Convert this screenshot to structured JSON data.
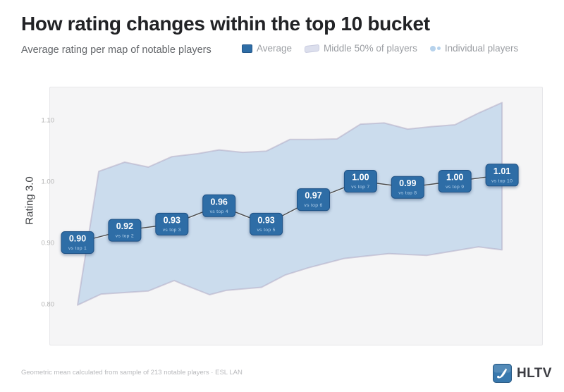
{
  "header": {
    "title": "How rating changes within the top 10 bucket",
    "subtitle": "Average rating per map of notable players"
  },
  "legend": {
    "items": [
      {
        "key": "average",
        "label": "Average",
        "color": "#2e6da6"
      },
      {
        "key": "middle-50",
        "label": "Middle 50% of players",
        "color": "#dcdfed"
      },
      {
        "key": "individual",
        "label": "Individual players",
        "color": "#b6d2ec"
      }
    ]
  },
  "chart_data": {
    "type": "line",
    "title": "How rating changes within the top 10 bucket",
    "subtitle": "Average rating per map of notable players",
    "xlabel": "",
    "ylabel": "Rating 3.0",
    "x": [
      1,
      2,
      3,
      4,
      5,
      6,
      7,
      8,
      9,
      10
    ],
    "categories": [
      "vs top 1",
      "vs top 2",
      "vs top 3",
      "vs top 4",
      "vs top 5",
      "vs top 6",
      "vs top 7",
      "vs top 8",
      "vs top 9",
      "vs top 10"
    ],
    "series": [
      {
        "name": "Average",
        "values": [
          0.9,
          0.92,
          0.93,
          0.96,
          0.93,
          0.97,
          1.0,
          0.99,
          1.0,
          1.01
        ]
      }
    ],
    "band": {
      "name": "Middle 50% of players",
      "upper": [
        [
          1.45,
          1.016
        ],
        [
          2,
          1.031
        ],
        [
          2.5,
          1.023
        ],
        [
          3,
          1.04
        ],
        [
          3.55,
          1.045
        ],
        [
          4,
          1.051
        ],
        [
          4.5,
          1.047
        ],
        [
          5,
          1.049
        ],
        [
          5.5,
          1.068
        ],
        [
          6,
          1.068
        ],
        [
          6.5,
          1.069
        ],
        [
          7,
          1.093
        ],
        [
          7.5,
          1.095
        ],
        [
          8,
          1.085
        ],
        [
          8.5,
          1.089
        ],
        [
          9,
          1.092
        ],
        [
          9.5,
          1.111
        ],
        [
          10,
          1.128
        ]
      ],
      "lower": [
        [
          1,
          0.798
        ],
        [
          1.5,
          0.816
        ],
        [
          2.5,
          0.821
        ],
        [
          3.05,
          0.838
        ],
        [
          3.2,
          0.833
        ],
        [
          3.8,
          0.815
        ],
        [
          4.15,
          0.822
        ],
        [
          4.9,
          0.827
        ],
        [
          5.4,
          0.847
        ],
        [
          5.9,
          0.859
        ],
        [
          6.65,
          0.874
        ],
        [
          7.6,
          0.882
        ],
        [
          8.4,
          0.879
        ],
        [
          9.5,
          0.893
        ],
        [
          10,
          0.888
        ]
      ]
    },
    "yticks": [
      1.1,
      1.0,
      0.9,
      0.8
    ],
    "ylim": [
      0.76,
      1.14
    ],
    "grid": false,
    "legend_position": "top"
  },
  "footer": {
    "note": "Geometric mean calculated from sample of 213 notable players · ESL LAN",
    "logo_text": "HLTV"
  },
  "colors": {
    "accent_blue": "#2e6da6",
    "badge_border": "#1f5286",
    "badge_sublabel": "#b5d2ec",
    "band_fill": "#c7d9ec",
    "band_stroke": "#b3abc4",
    "line": "#4a4a4a",
    "panel_bg": "#f5f5f6",
    "tick": "#b4b4b4"
  }
}
